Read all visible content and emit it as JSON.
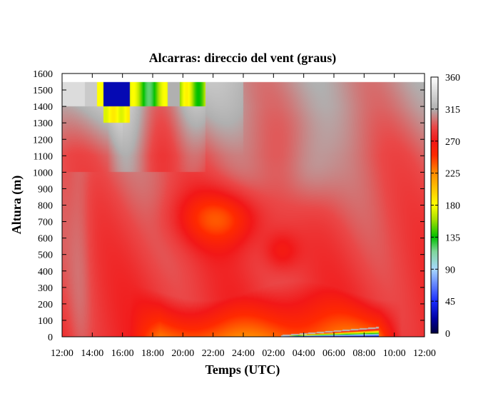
{
  "chart_data": {
    "type": "heatmap",
    "title": "Alcarras: direccio del vent (graus)",
    "xlabel": "Temps (UTC)",
    "ylabel": "Altura (m)",
    "x_ticks": [
      "12:00",
      "14:00",
      "16:00",
      "18:00",
      "20:00",
      "22:00",
      "24:00",
      "02:00",
      "04:00",
      "06:00",
      "08:00",
      "10:00",
      "12:00"
    ],
    "x_range_hours": [
      0,
      24
    ],
    "y_ticks": [
      0,
      100,
      200,
      300,
      400,
      500,
      600,
      700,
      800,
      900,
      1000,
      1100,
      1200,
      1300,
      1400,
      1500,
      1600
    ],
    "ylim": [
      0,
      1600
    ],
    "data_top_m": 1550,
    "colorbar": {
      "ticks": [
        0,
        45,
        90,
        135,
        180,
        225,
        270,
        315,
        360
      ],
      "range": [
        0,
        360
      ],
      "position": "right"
    },
    "colormap_stops": [
      {
        "v": 0,
        "color": "#000040"
      },
      {
        "v": 20,
        "color": "#0000a0"
      },
      {
        "v": 45,
        "color": "#1a2cff"
      },
      {
        "v": 90,
        "color": "#a8d8ff"
      },
      {
        "v": 115,
        "color": "#7fd79a"
      },
      {
        "v": 135,
        "color": "#00c000"
      },
      {
        "v": 160,
        "color": "#a8e000"
      },
      {
        "v": 180,
        "color": "#ffff00"
      },
      {
        "v": 225,
        "color": "#ff8c00"
      },
      {
        "v": 250,
        "color": "#ff2a00"
      },
      {
        "v": 270,
        "color": "#f21818"
      },
      {
        "v": 290,
        "color": "#ea4848"
      },
      {
        "v": 315,
        "color": "#b0b0b0"
      },
      {
        "v": 360,
        "color": "#ffffff"
      }
    ],
    "description_points": [
      {
        "hour": 0,
        "heights_m": [
          0,
          200,
          800,
          1200,
          1550
        ],
        "direction_deg": [
          275,
          275,
          280,
          310,
          330
        ]
      },
      {
        "hour": 6,
        "heights_m": [
          0,
          150,
          600,
          1300,
          1550
        ],
        "direction_deg": [
          230,
          255,
          275,
          295,
          150
        ]
      },
      {
        "hour": 11,
        "heights_m": [
          0,
          150,
          700,
          1300,
          1550
        ],
        "direction_deg": [
          230,
          250,
          240,
          290,
          330
        ]
      },
      {
        "hour": 18,
        "heights_m": [
          0,
          50,
          200,
          900,
          1550
        ],
        "direction_deg": [
          30,
          240,
          265,
          290,
          300
        ]
      },
      {
        "hour": 24,
        "heights_m": [
          0,
          200,
          900,
          1550
        ],
        "direction_deg": [
          270,
          272,
          285,
          295
        ]
      }
    ]
  }
}
